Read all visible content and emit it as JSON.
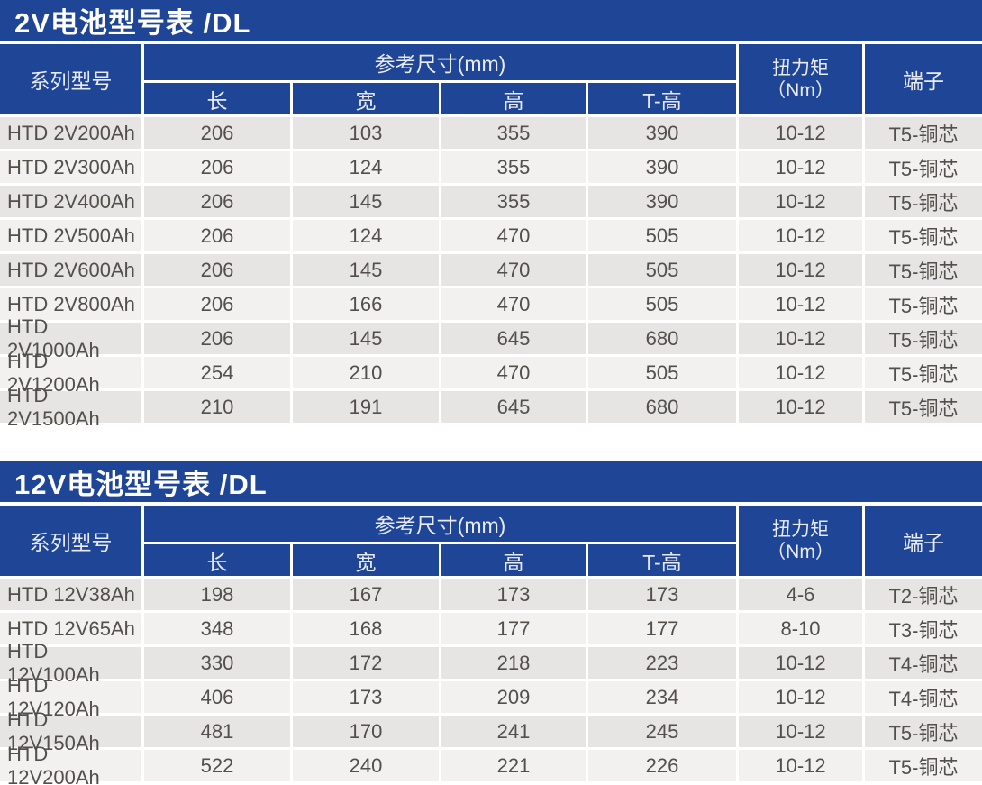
{
  "colors": {
    "accent_blue": "#1f4597",
    "row_dark": "#e7e5e3",
    "row_light": "#f2f1ef",
    "data_text": "#524f4c",
    "header_text": "#e9ebf4",
    "title_text": "#ffffff"
  },
  "tables": [
    {
      "title": "2V电池型号表 /DL",
      "header": {
        "series": "系列型号",
        "dims_group": "参考尺寸(mm)",
        "dim_columns": [
          "长",
          "宽",
          "高",
          "T-高"
        ],
        "torque_line1": "扭力矩",
        "torque_line2": "（Nm）",
        "terminal": "端子"
      },
      "rows": [
        [
          "HTD 2V200Ah",
          "206",
          "103",
          "355",
          "390",
          "10-12",
          "T5-铜芯"
        ],
        [
          "HTD 2V300Ah",
          "206",
          "124",
          "355",
          "390",
          "10-12",
          "T5-铜芯"
        ],
        [
          "HTD 2V400Ah",
          "206",
          "145",
          "355",
          "390",
          "10-12",
          "T5-铜芯"
        ],
        [
          "HTD 2V500Ah",
          "206",
          "124",
          "470",
          "505",
          "10-12",
          "T5-铜芯"
        ],
        [
          "HTD 2V600Ah",
          "206",
          "145",
          "470",
          "505",
          "10-12",
          "T5-铜芯"
        ],
        [
          "HTD 2V800Ah",
          "206",
          "166",
          "470",
          "505",
          "10-12",
          "T5-铜芯"
        ],
        [
          "HTD 2V1000Ah",
          "206",
          "145",
          "645",
          "680",
          "10-12",
          "T5-铜芯"
        ],
        [
          "HTD 2V1200Ah",
          "254",
          "210",
          "470",
          "505",
          "10-12",
          "T5-铜芯"
        ],
        [
          "HTD 2V1500Ah",
          "210",
          "191",
          "645",
          "680",
          "10-12",
          "T5-铜芯"
        ]
      ]
    },
    {
      "title": "12V电池型号表 /DL",
      "header": {
        "series": "系列型号",
        "dims_group": "参考尺寸(mm)",
        "dim_columns": [
          "长",
          "宽",
          "高",
          "T-高"
        ],
        "torque_line1": "扭力矩",
        "torque_line2": "（Nm）",
        "terminal": "端子"
      },
      "rows": [
        [
          "HTD 12V38Ah",
          "198",
          "167",
          "173",
          "173",
          "4-6",
          "T2-铜芯"
        ],
        [
          "HTD 12V65Ah",
          "348",
          "168",
          "177",
          "177",
          "8-10",
          "T3-铜芯"
        ],
        [
          "HTD 12V100Ah",
          "330",
          "172",
          "218",
          "223",
          "10-12",
          "T4-铜芯"
        ],
        [
          "HTD 12V120Ah",
          "406",
          "173",
          "209",
          "234",
          "10-12",
          "T4-铜芯"
        ],
        [
          "HTD 12V150Ah",
          "481",
          "170",
          "241",
          "245",
          "10-12",
          "T5-铜芯"
        ],
        [
          "HTD 12V200Ah",
          "522",
          "240",
          "221",
          "226",
          "10-12",
          "T5-铜芯"
        ]
      ]
    }
  ]
}
